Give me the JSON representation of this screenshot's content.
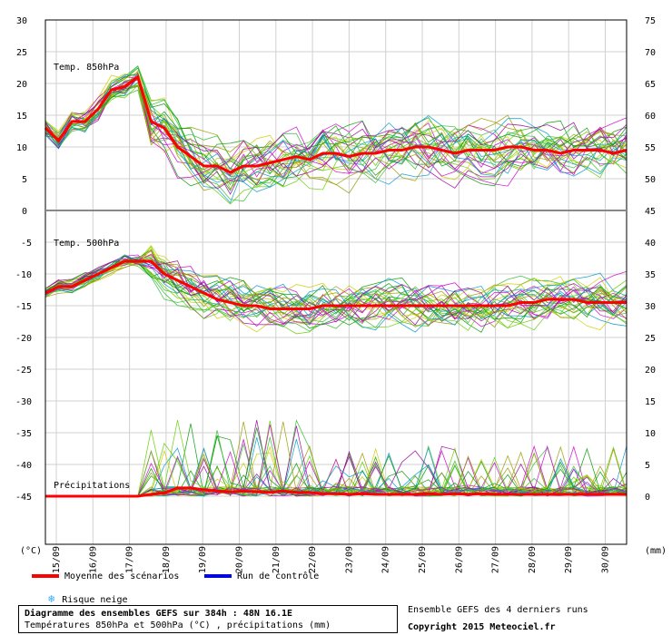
{
  "chart_data": {
    "type": "line",
    "x_dates": [
      "15/09",
      "16/09",
      "17/09",
      "18/09",
      "19/09",
      "20/09",
      "21/09",
      "22/09",
      "23/09",
      "24/09",
      "25/09",
      "26/09",
      "27/09",
      "28/09",
      "29/09",
      "30/09"
    ],
    "left_axis_label": "(°C)",
    "right_axis_label": "(mm)",
    "panels": [
      {
        "name": "Temp. 850hPa",
        "left_ticks": [
          "30",
          "25",
          "20",
          "15",
          "10",
          "5",
          "0"
        ],
        "right_ticks": [
          "75",
          "70",
          "65",
          "60",
          "55",
          "50",
          "45"
        ],
        "ylim": [
          0,
          30
        ],
        "mean_series": {
          "name": "Moyenne des scénarios",
          "values": [
            13,
            11,
            14,
            14,
            16,
            19,
            19.5,
            21,
            14,
            13,
            10,
            8.5,
            7,
            7,
            6,
            7,
            7,
            7.5,
            8,
            8.5,
            8,
            9,
            9,
            8.5,
            9,
            9,
            9.5,
            9.5,
            10,
            10,
            9.5,
            9,
            9.5,
            9.5,
            9.5,
            10,
            10,
            9.5,
            9.5,
            9,
            9.5,
            9.5,
            9.5,
            9,
            9.5
          ]
        }
      },
      {
        "name": "Temp. 500hPa",
        "left_ticks": [
          "-5",
          "-10",
          "-15",
          "-20",
          "-25",
          "-30",
          "-35",
          "-40",
          "-45"
        ],
        "right_ticks": [
          "40",
          "35",
          "30",
          "25",
          "20",
          "15",
          "10",
          "5",
          "0"
        ],
        "ylim": [
          -47,
          0
        ],
        "mean_series": {
          "name": "Moyenne des scénarios",
          "values": [
            -13,
            -12,
            -12,
            -11,
            -10,
            -9,
            -8,
            -8,
            -8,
            -10,
            -11,
            -12,
            -13,
            -14,
            -14.5,
            -15,
            -15,
            -15.5,
            -15.5,
            -15.5,
            -15.5,
            -15,
            -15,
            -15,
            -15,
            -15,
            -15,
            -15,
            -15,
            -15,
            -15,
            -15,
            -15,
            -15,
            -15,
            -15,
            -14.5,
            -14.5,
            -14,
            -14,
            -14,
            -14.5,
            -14.5,
            -14.5,
            -14.5
          ]
        }
      },
      {
        "name": "Précipitations",
        "ylim": [
          0,
          40
        ],
        "mean_series": {
          "name": "Moyenne des scénarios",
          "values": [
            0,
            0,
            0,
            0,
            0,
            0,
            0,
            0,
            0.3,
            0.5,
            1.3,
            1.3,
            1.0,
            0.8,
            0.7,
            0.8,
            0.7,
            0.6,
            0.8,
            0.6,
            0.6,
            0.4,
            0.4,
            0.3,
            0.4,
            0.3,
            0.3,
            0.3,
            0.3,
            0.4,
            0.3,
            0.4,
            0.3,
            0.4,
            0.3,
            0.3,
            0.3,
            0.3,
            0.3,
            0.3,
            0.3,
            0.3,
            0.3,
            0.3,
            0.3
          ]
        }
      }
    ],
    "legend": [
      {
        "label": "Moyenne des scénarios",
        "color": "#ff0000"
      },
      {
        "label": "Run de contrôle",
        "color": "#0000ff"
      },
      {
        "label": "Risque neige",
        "icon": "snowflake-icon",
        "color": "#33aaff"
      }
    ],
    "ensemble_colors": [
      "#009900",
      "#66cc00",
      "#33bb33",
      "#999900",
      "#cc00cc",
      "#0099cc",
      "#cccc00",
      "#990099"
    ]
  },
  "title": {
    "line1": "Diagramme des ensembles GEFS sur 384h : 48N 16.1E",
    "line2": "Températures 850hPa et 500hPa (°C) , précipitations (mm)"
  },
  "credits": {
    "line1": "Ensemble GEFS des 4 derniers runs",
    "line2": "Copyright 2015 Meteociel.fr"
  }
}
